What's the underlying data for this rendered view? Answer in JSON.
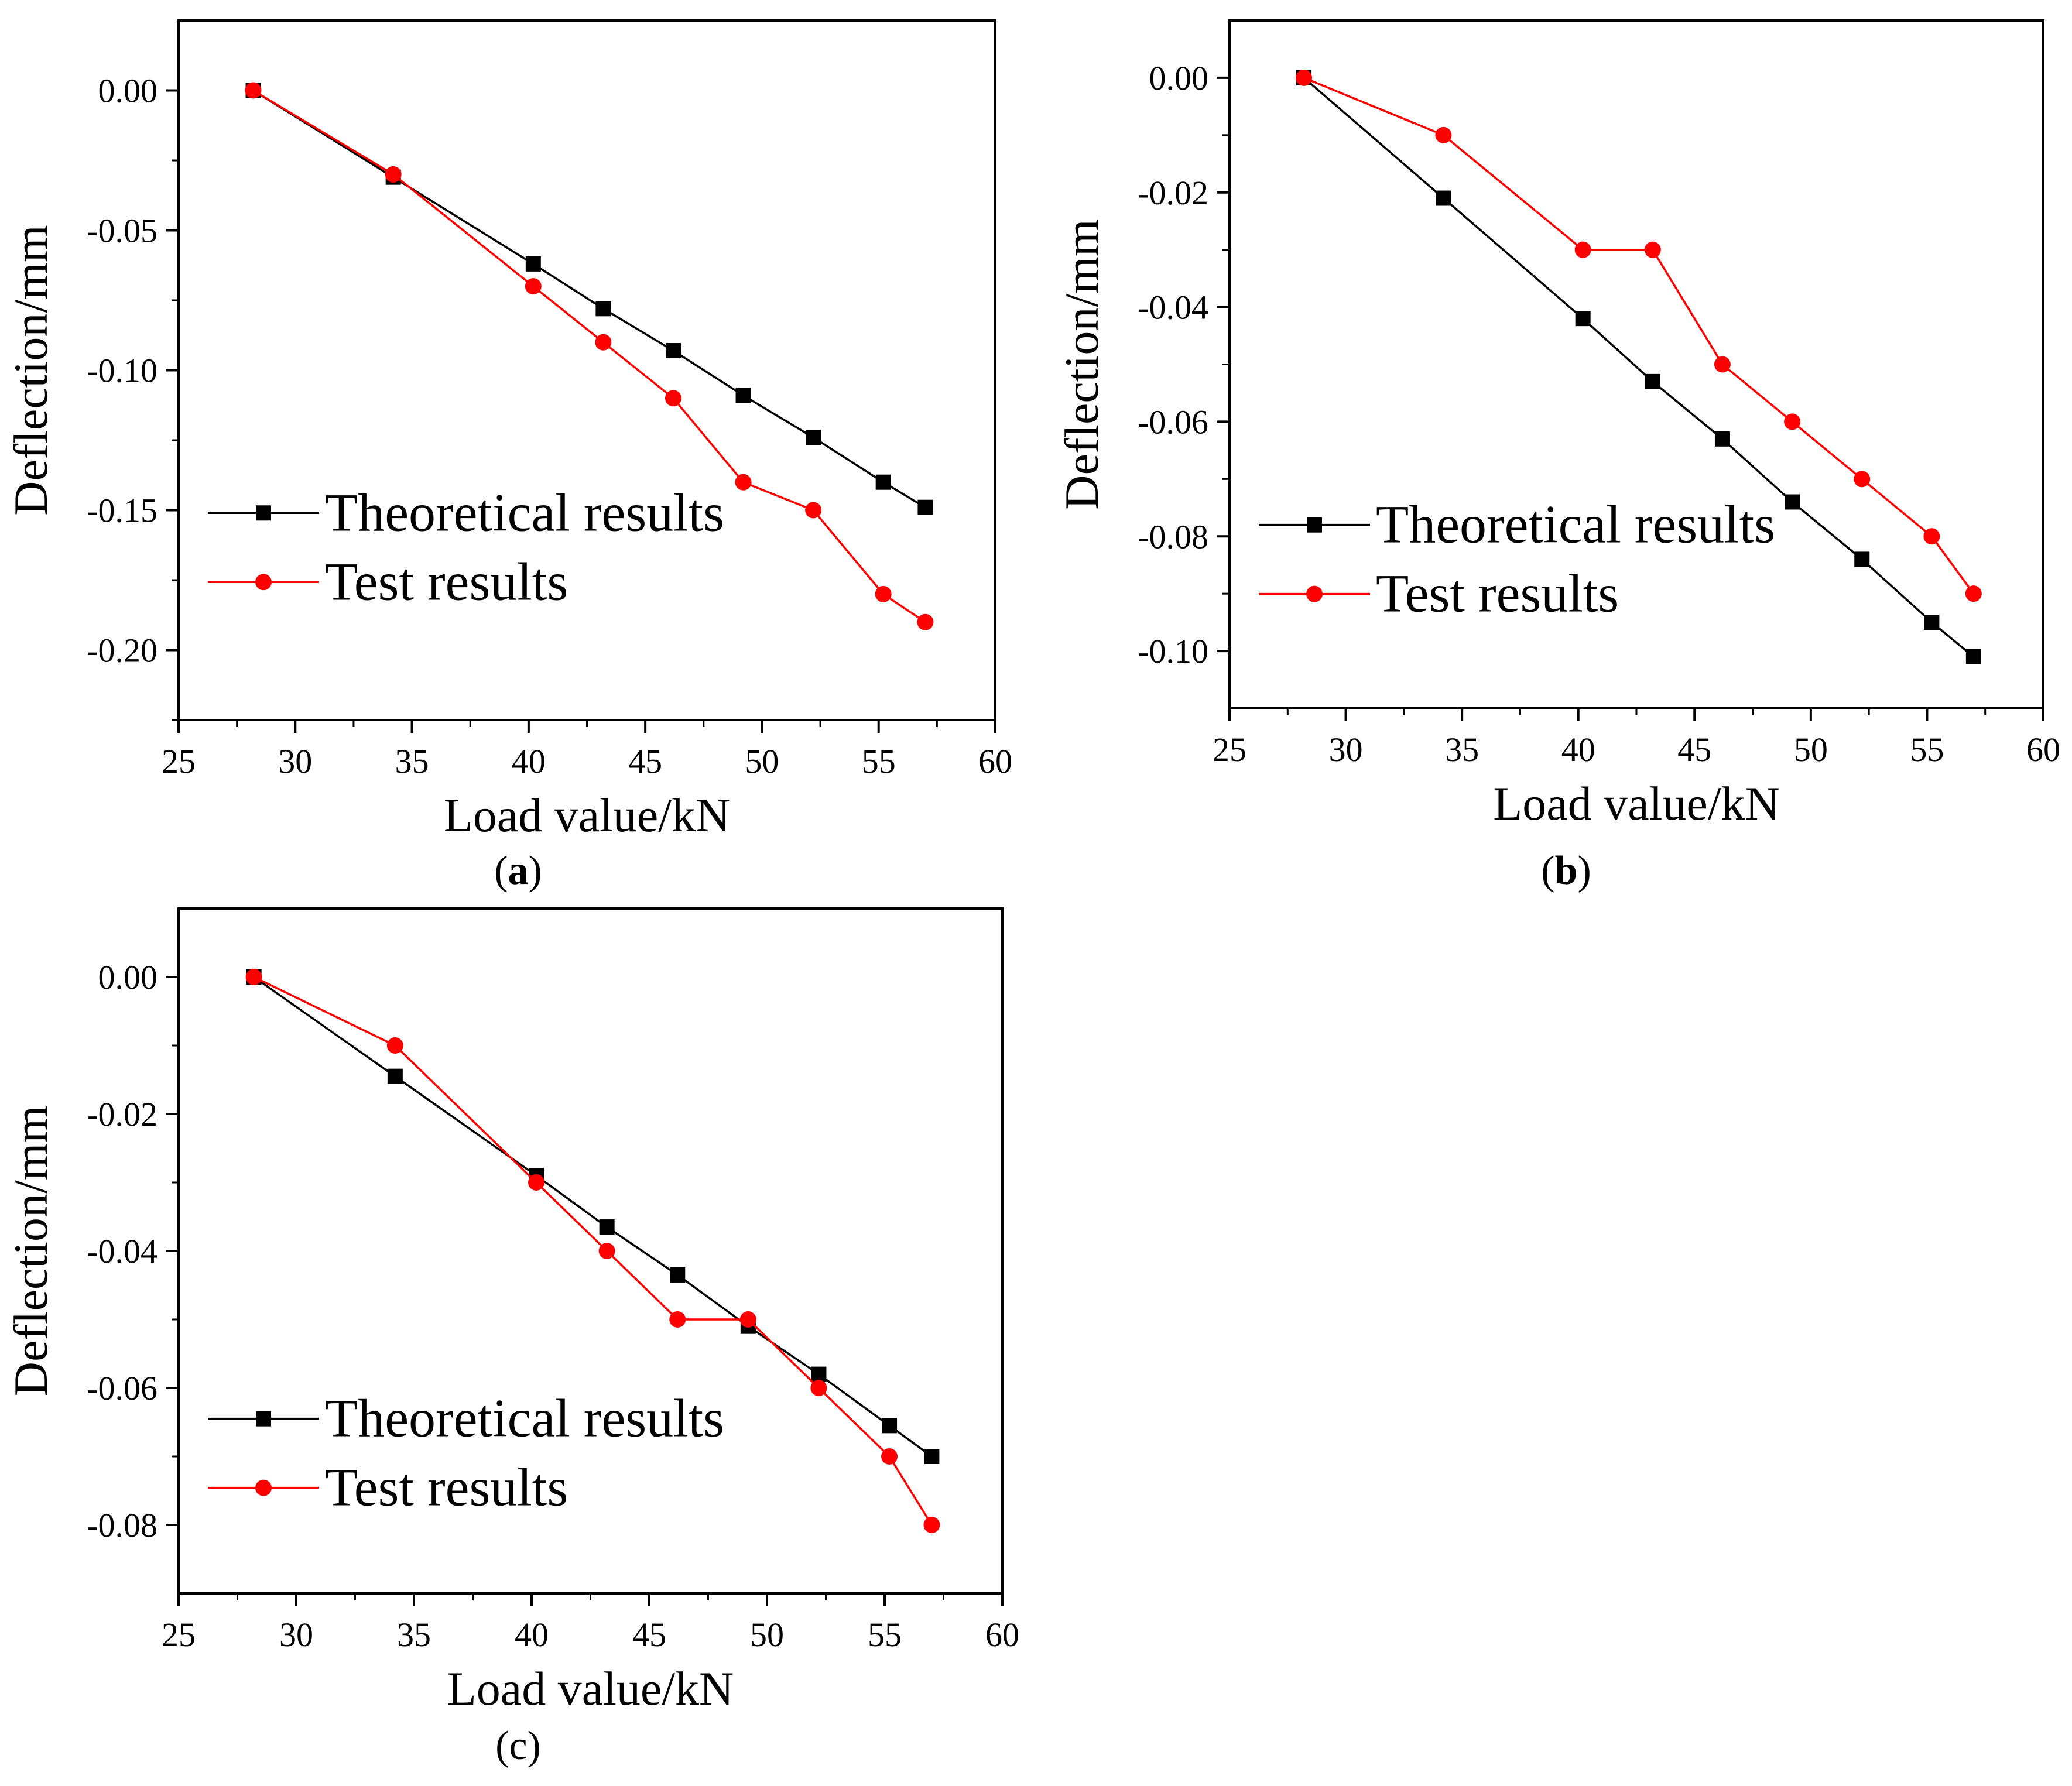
{
  "colors": {
    "theoretical": "#000000",
    "test": "#ff0000",
    "axis": "#000000"
  },
  "chart_data": [
    {
      "type": "line",
      "panel": "a",
      "xlabel": "Load value/kN",
      "ylabel": "Deflection/mm",
      "xlim": [
        25,
        60
      ],
      "ylim": [
        -0.225,
        0.025
      ],
      "xticks": [
        25,
        30,
        35,
        40,
        45,
        50,
        55,
        60
      ],
      "xtick_labels": [
        "25",
        "30",
        "35",
        "40",
        "45",
        "50",
        "55",
        "60"
      ],
      "yticks": [
        0,
        -0.05,
        -0.1,
        -0.15,
        -0.2
      ],
      "ytick_labels": [
        "0.00",
        "-0.05",
        "-0.10",
        "-0.15",
        "-0.20"
      ],
      "legend_position": "lower-left",
      "x": [
        28.2,
        34.2,
        40.2,
        43.2,
        46.2,
        49.2,
        52.2,
        55.2,
        57.0
      ],
      "series": [
        {
          "name": "Theoretical results",
          "marker": "square",
          "color": "#000000",
          "values": [
            0,
            -0.031,
            -0.062,
            -0.078,
            -0.093,
            -0.109,
            -0.124,
            -0.14,
            -0.149
          ]
        },
        {
          "name": "Test results",
          "marker": "circle",
          "color": "#ff0000",
          "values": [
            0,
            -0.03,
            -0.07,
            -0.09,
            -0.11,
            -0.14,
            -0.15,
            -0.18,
            -0.19
          ]
        }
      ]
    },
    {
      "type": "line",
      "panel": "b",
      "xlabel": "Load value/kN",
      "ylabel": "Deflection/mm",
      "xlim": [
        25,
        60
      ],
      "ylim": [
        -0.11,
        0.01
      ],
      "xticks": [
        25,
        30,
        35,
        40,
        45,
        50,
        55,
        60
      ],
      "xtick_labels": [
        "25",
        "30",
        "35",
        "40",
        "45",
        "50",
        "55",
        "60"
      ],
      "yticks": [
        0,
        -0.02,
        -0.04,
        -0.06,
        -0.08,
        -0.1
      ],
      "ytick_labels": [
        "0.00",
        "-0.02",
        "-0.04",
        "-0.06",
        "-0.08",
        "-0.10"
      ],
      "legend_position": "lower-left",
      "x": [
        28.2,
        34.2,
        40.2,
        43.2,
        46.2,
        49.2,
        52.2,
        55.2,
        57.0
      ],
      "series": [
        {
          "name": "Theoretical results",
          "marker": "square",
          "color": "#000000",
          "values": [
            0,
            -0.021,
            -0.042,
            -0.053,
            -0.063,
            -0.074,
            -0.084,
            -0.095,
            -0.101
          ]
        },
        {
          "name": "Test results",
          "marker": "circle",
          "color": "#ff0000",
          "values": [
            0,
            -0.01,
            -0.03,
            -0.03,
            -0.05,
            -0.06,
            -0.07,
            -0.08,
            -0.09
          ]
        }
      ]
    },
    {
      "type": "line",
      "panel": "c",
      "xlabel": "Load value/kN",
      "ylabel": "Deflection/mm",
      "xlim": [
        25,
        60
      ],
      "ylim": [
        -0.09,
        0.01
      ],
      "xticks": [
        25,
        30,
        35,
        40,
        45,
        50,
        55,
        60
      ],
      "xtick_labels": [
        "25",
        "30",
        "35",
        "40",
        "45",
        "50",
        "55",
        "60"
      ],
      "yticks": [
        0,
        -0.02,
        -0.04,
        -0.06,
        -0.08
      ],
      "ytick_labels": [
        "0.00",
        "-0.02",
        "-0.04",
        "-0.06",
        "-0.08"
      ],
      "legend_position": "lower-left",
      "x": [
        28.2,
        34.2,
        40.2,
        43.2,
        46.2,
        49.2,
        52.2,
        55.2,
        57.0
      ],
      "series": [
        {
          "name": "Theoretical results",
          "marker": "square",
          "color": "#000000",
          "values": [
            0,
            -0.0145,
            -0.029,
            -0.0365,
            -0.0435,
            -0.051,
            -0.058,
            -0.0655,
            -0.07
          ]
        },
        {
          "name": "Test results",
          "marker": "circle",
          "color": "#ff0000",
          "values": [
            0,
            -0.01,
            -0.03,
            -0.04,
            -0.05,
            -0.05,
            -0.06,
            -0.07,
            -0.08
          ]
        }
      ]
    }
  ]
}
